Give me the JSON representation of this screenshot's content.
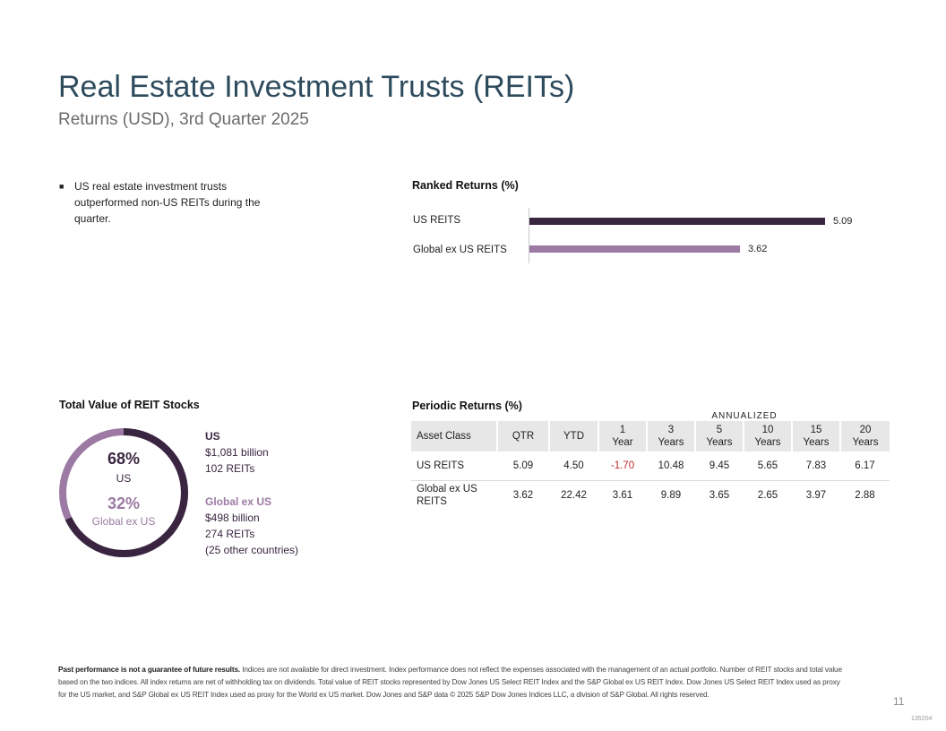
{
  "header": {
    "title": "Real Estate Investment Trusts (REITs)",
    "subtitle": "Returns (USD), 3rd Quarter 2025"
  },
  "commentary": {
    "bullet": "US real estate investment trusts outperformed non-US REITs during the quarter."
  },
  "ranked_returns": {
    "heading": "Ranked Returns (%)"
  },
  "chart_data": {
    "type": "bar",
    "orientation": "horizontal",
    "title": "Ranked Returns (%)",
    "categories": [
      "US REITS",
      "Global ex US REITS"
    ],
    "values": [
      5.09,
      3.62
    ],
    "value_labels": [
      "5.09",
      "3.62"
    ],
    "colors": [
      "#3a2540",
      "#9c7aa3"
    ],
    "xlim": [
      0,
      5.09
    ]
  },
  "total_value": {
    "heading": "Total Value of REIT Stocks",
    "us_pct": "68%",
    "us_label": "US",
    "intl_pct": "32%",
    "intl_label": "Global ex US",
    "us_share": 68,
    "us_color": "#3a2540",
    "intl_color": "#9c7aa3",
    "legend_us": {
      "title": "US",
      "value": "$1,081 billion",
      "count": "102 REITs"
    },
    "legend_intl": {
      "title": "Global ex US",
      "value": "$498 billion",
      "count": "274 REITs",
      "note": "(25 other countries)"
    }
  },
  "periodic_returns": {
    "heading": "Periodic Returns (%)",
    "annualized_label": "ANNUALIZED",
    "columns": {
      "asset": "Asset Class",
      "qtr": "QTR",
      "ytd": "YTD",
      "y1a": "1",
      "y1b": "Year",
      "y3a": "3",
      "y3b": "Years",
      "y5a": "5",
      "y5b": "Years",
      "y10a": "10",
      "y10b": "Years",
      "y15a": "15",
      "y15b": "Years",
      "y20a": "20",
      "y20b": "Years"
    },
    "rows": [
      {
        "asset": "US REITS",
        "qtr": "5.09",
        "ytd": "4.50",
        "y1": "-1.70",
        "y3": "10.48",
        "y5": "9.45",
        "y10": "5.65",
        "y15": "7.83",
        "y20": "6.17"
      },
      {
        "asset": "Global ex US REITS",
        "qtr": "3.62",
        "ytd": "22.42",
        "y1": "3.61",
        "y3": "9.89",
        "y5": "3.65",
        "y10": "2.65",
        "y15": "3.97",
        "y20": "2.88"
      }
    ],
    "negative_color": "#c0282d"
  },
  "footer": {
    "disclaimer_bold": "Past performance is not a guarantee of future results.",
    "disclaimer": "Indices are not available for direct investment. Index performance does not reflect the expenses associated with the management of an actual portfolio. Number of REIT stocks and total value based on the two indices. All index returns are net of withholding tax on dividends. Total value of REIT stocks represented by Dow Jones US Select REIT Index and the S&P Global ex US REIT Index. Dow Jones US Select REIT Index used as proxy for the US market, and S&P Global ex US REIT Index used as proxy for the World ex US market. Dow Jones and S&P data © 2025 S&P Dow Jones Indices LLC, a division of S&P Global. All rights reserved.",
    "page_number": "11",
    "doc_id": "135204"
  }
}
